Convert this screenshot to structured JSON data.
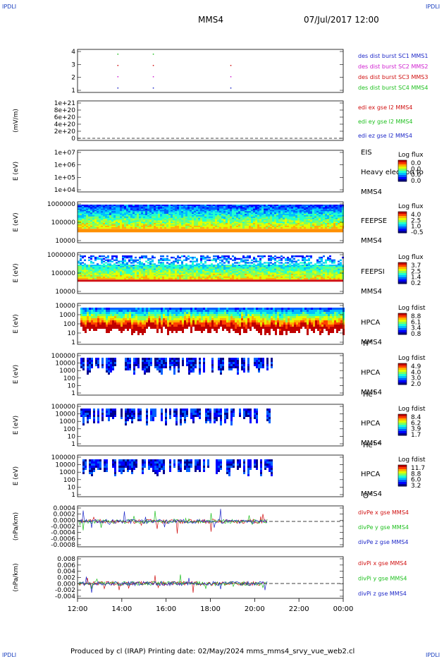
{
  "header": {
    "left_logo": "IPDLI",
    "right_logo": "IPDLI",
    "title": "MMS4",
    "date": "07/Jul/2017 12:00"
  },
  "footer": {
    "text": "Produced by cl (IRAP)   Printing date: 02/May/2024   mms_mms4_srvy_vue_web2.cl",
    "left_logo": "IPDLI",
    "right_logo": "IPDLI"
  },
  "time_axis": {
    "ticks": [
      "12:00",
      "14:00",
      "16:00",
      "18:00",
      "20:00",
      "22:00",
      "00:00"
    ]
  },
  "colors": {
    "blue": "#1e28c8",
    "magenta": "#d020d0",
    "red": "#d01010",
    "green": "#20c020"
  },
  "panels": [
    {
      "id": "des",
      "type": "scatter",
      "ylabel": "",
      "yticks": [
        "4",
        "3",
        "2",
        "1"
      ],
      "legend": [
        {
          "text": "des dist burst SC1 MMS1",
          "color": "#1e28c8"
        },
        {
          "text": "des dist burst SC2 MMS2",
          "color": "#d020d0"
        },
        {
          "text": "des dist burst SC3 MMS3",
          "color": "#d01010"
        },
        {
          "text": "des dist burst SC4 MMS4",
          "color": "#20c020"
        }
      ],
      "events_hours": [
        13.8,
        15.4,
        18.9
      ]
    },
    {
      "id": "edi",
      "type": "line",
      "ylabel": "(mV/m)",
      "yticks": [
        "1e+21",
        "8e+20",
        "6e+20",
        "4e+20",
        "2e+20",
        "0"
      ],
      "legend": [
        {
          "text": "edi ex gse l2 MMS4",
          "color": "#d01010"
        },
        {
          "text": "edi ey gse l2 MMS4",
          "color": "#20c020"
        },
        {
          "text": "edi ez gse l2 MMS4",
          "color": "#1e28c8"
        }
      ]
    },
    {
      "id": "eis",
      "type": "heatmap",
      "ylabel": "E (eV)",
      "yticks": [
        "1e+07",
        "1e+06",
        "1e+05",
        "1e+04"
      ],
      "right": [
        "EIS",
        "Heavy electron to",
        "MMS4"
      ],
      "colorbar": {
        "title": "Log flux",
        "ticks": [
          "0.0",
          "0.0",
          "0.0",
          "0.0"
        ]
      }
    },
    {
      "id": "feepse",
      "type": "heatmap",
      "ylabel": "E (eV)",
      "yticks": [
        "1000000",
        "100000",
        "10000"
      ],
      "right": [
        "FEEPSE",
        "MMS4"
      ],
      "colorbar": {
        "title": "Log flux",
        "ticks": [
          "4.0",
          "2.5",
          "1.0",
          "-0.5"
        ]
      }
    },
    {
      "id": "feepsi",
      "type": "heatmap",
      "ylabel": "E (eV)",
      "yticks": [
        "1000000",
        "100000",
        "10000"
      ],
      "right": [
        "FEEPSI",
        "MMS4"
      ],
      "colorbar": {
        "title": "Log flux",
        "ticks": [
          "3.7",
          "2.5",
          "1.4",
          "0.2"
        ]
      }
    },
    {
      "id": "hpca_h",
      "type": "heatmap",
      "ylabel": "E (eV)",
      "yticks": [
        "10000",
        "1000",
        "100",
        "10",
        "1"
      ],
      "right": [
        "HPCA",
        "MMS4"
      ],
      "species": "H",
      "species_sup": "+",
      "colorbar": {
        "title": "Log fdist",
        "ticks": [
          "8.8",
          "6.1",
          "3.4",
          "0.8"
        ]
      }
    },
    {
      "id": "hpca_he",
      "type": "heatmap",
      "ylabel": "E (eV)",
      "yticks": [
        "100000",
        "10000",
        "1000",
        "100",
        "10",
        "1"
      ],
      "right": [
        "HPCA",
        "MMS4"
      ],
      "species": "He",
      "species_sup": "+",
      "colorbar": {
        "title": "Log fdist",
        "ticks": [
          "4.9",
          "4.0",
          "3.0",
          "2.0"
        ]
      }
    },
    {
      "id": "hpca_hepp",
      "type": "heatmap",
      "ylabel": "E (eV)",
      "yticks": [
        "100000",
        "10000",
        "1000",
        "100",
        "10",
        "1"
      ],
      "right": [
        "HPCA",
        "MMS4"
      ],
      "species": "He",
      "species_sup": "++",
      "colorbar": {
        "title": "Log fdist",
        "ticks": [
          "8.4",
          "6.2",
          "3.9",
          "1.7"
        ]
      }
    },
    {
      "id": "hpca_o",
      "type": "heatmap",
      "ylabel": "E (eV)",
      "yticks": [
        "100000",
        "10000",
        "1000",
        "100",
        "10",
        "1"
      ],
      "right": [
        "HPCA",
        "MMS4"
      ],
      "species": "O",
      "species_sup": "+",
      "colorbar": {
        "title": "Log fdist",
        "ticks": [
          "11.7",
          "8.8",
          "6.0",
          "3.2"
        ]
      }
    },
    {
      "id": "divpe",
      "type": "line",
      "ylabel": "(nPa/km)",
      "yticks": [
        "0.0004",
        "0.0002",
        "0.0000",
        "-0.0002",
        "-0.0004",
        "-0.0006",
        "-0.0008"
      ],
      "legend": [
        {
          "text": "divPe x gse MMS4",
          "color": "#d01010"
        },
        {
          "text": "divPe y gse MMS4",
          "color": "#20c020"
        },
        {
          "text": "divPe z gse MMS4",
          "color": "#1e28c8"
        }
      ]
    },
    {
      "id": "divpi",
      "type": "line",
      "ylabel": "(nPa/km)",
      "yticks": [
        "0.008",
        "0.006",
        "0.004",
        "0.002",
        "0.000",
        "-0.002",
        "-0.004"
      ],
      "legend": [
        {
          "text": "divPi x gse MMS4",
          "color": "#d01010"
        },
        {
          "text": "divPi y gse MMS4",
          "color": "#20c020"
        },
        {
          "text": "divPi z gse MMS4",
          "color": "#1e28c8"
        }
      ]
    }
  ],
  "chart_data": {
    "type": "heatmap",
    "title": "MMS4",
    "subtitle": "07/Jul/2017 12:00",
    "x_range_hours": [
      12,
      24
    ],
    "xticks": [
      "12:00",
      "14:00",
      "16:00",
      "18:00",
      "20:00",
      "22:00",
      "00:00"
    ],
    "panels": [
      "des",
      "edi",
      "eis",
      "feepse",
      "feepsi",
      "hpca_h",
      "hpca_he",
      "hpca_hepp",
      "hpca_o",
      "divpe",
      "divpi"
    ]
  }
}
